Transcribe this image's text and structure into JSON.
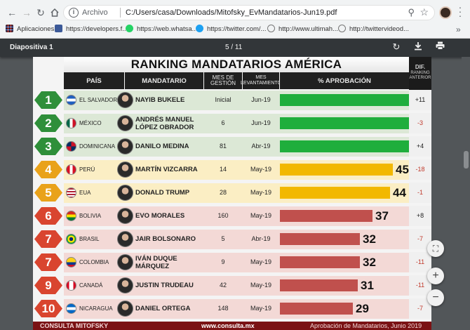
{
  "browser": {
    "omnibox_scheme": "Archivo",
    "url": "C:/Users/casa/Downloads/Mitofsky_EvMandatarios-Jun19.pdf",
    "bookmarks": [
      {
        "label": "Aplicaciones",
        "icon": "apps-grid-icon"
      },
      {
        "label": "https://developers.f...",
        "icon": "facebook-icon"
      },
      {
        "label": "https://web.whatsa...",
        "icon": "whatsapp-icon"
      },
      {
        "label": "https://twitter.com/...",
        "icon": "twitter-icon"
      },
      {
        "label": "http://www.ultimah...",
        "icon": "globe-icon"
      },
      {
        "label": "http://twittervideod...",
        "icon": "globe-icon"
      }
    ]
  },
  "pdf": {
    "title": "Diapositiva 1",
    "page_indicator": "5 / 11"
  },
  "slide": {
    "title": "RANKING MANDATARIOS AMÉRICA",
    "headers": {
      "country": "PAÍS",
      "leader": "MANDATARIO",
      "months": "MES DE GESTIÓN",
      "survey": "MES LEVANTAMIENTO",
      "approval": "% APROBACIÓN",
      "dif_top": "DIF.",
      "dif_sub": "RANKING ANTERIOR"
    },
    "rows": [
      {
        "rank": "1",
        "country": "EL SALVADOR",
        "leader": "NAYIB BUKELE",
        "months": "Inicial",
        "survey": "Jun-19",
        "approval": "71",
        "dif": "+11"
      },
      {
        "rank": "2",
        "country": "MÉXICO",
        "leader": "ANDRÉS MANUEL LÓPEZ OBRADOR",
        "months": "6",
        "survey": "Jun-19",
        "approval": "64",
        "dif": "-3"
      },
      {
        "rank": "3",
        "country": "DOMINICANA",
        "leader": "DANILO MEDINA",
        "months": "81",
        "survey": "Abr-19",
        "approval": "62",
        "dif": "+4"
      },
      {
        "rank": "4",
        "country": "PERÚ",
        "leader": "MARTÍN VIZCARRA",
        "months": "14",
        "survey": "May-19",
        "approval": "45",
        "dif": "-18"
      },
      {
        "rank": "5",
        "country": "EUA",
        "leader": "DONALD TRUMP",
        "months": "28",
        "survey": "May-19",
        "approval": "44",
        "dif": "-1"
      },
      {
        "rank": "6",
        "country": "BOLIVIA",
        "leader": "EVO MORALES",
        "months": "160",
        "survey": "May-19",
        "approval": "37",
        "dif": "+8"
      },
      {
        "rank": "7",
        "country": "BRASIL",
        "leader": "JAIR BOLSONARO",
        "months": "5",
        "survey": "Abr-19",
        "approval": "32",
        "dif": "-7"
      },
      {
        "rank": "7",
        "country": "COLOMBIA",
        "leader": "IVÁN DUQUE MÁRQUEZ",
        "months": "9",
        "survey": "May-19",
        "approval": "32",
        "dif": "-11"
      },
      {
        "rank": "9",
        "country": "CANADÁ",
        "leader": "JUSTIN TRUDEAU",
        "months": "42",
        "survey": "May-19",
        "approval": "31",
        "dif": "-11"
      },
      {
        "rank": "10",
        "country": "NICARAGUA",
        "leader": "DANIEL ORTEGA",
        "months": "148",
        "survey": "May-19",
        "approval": "29",
        "dif": "-7"
      }
    ],
    "footer": {
      "brand": "CONSULTA MITOFSKY",
      "website": "www.consulta.mx",
      "report": "Aprobación de Mandatarios, Junio 2019"
    }
  },
  "chart_data": {
    "type": "bar",
    "title": "RANKING MANDATARIOS AMÉRICA",
    "categories": [
      "EL SALVADOR",
      "MÉXICO",
      "DOMINICANA",
      "PERÚ",
      "EUA",
      "BOLIVIA",
      "BRASIL",
      "COLOMBIA",
      "CANADÁ",
      "NICARAGUA"
    ],
    "series": [
      {
        "name": "% APROBACIÓN",
        "values": [
          71,
          64,
          62,
          45,
          44,
          37,
          32,
          32,
          31,
          29
        ]
      }
    ],
    "orientation": "horizontal"
  },
  "colors": {
    "green": "#1fae3c",
    "yellow": "#f2b800",
    "red": "#c0504d",
    "band_green": "#dce8d6",
    "band_yellow": "#fbeec4",
    "band_red": "#f3d9d6",
    "hex_green": "#2f8f3a",
    "hex_yellow": "#e9a21a",
    "hex_red": "#d9452f"
  }
}
